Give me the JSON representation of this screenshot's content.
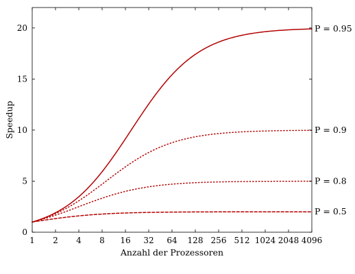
{
  "chart_data": {
    "type": "line",
    "xlabel": "Anzahl der Prozessoren",
    "ylabel": "Speedup",
    "x_scale": "log2",
    "xlim": [
      1,
      4096
    ],
    "ylim": [
      0,
      22
    ],
    "x": [
      1,
      2,
      4,
      8,
      16,
      32,
      64,
      128,
      256,
      512,
      1024,
      2048,
      4096
    ],
    "x_tick_labels": [
      "1",
      "2",
      "4",
      "8",
      "16",
      "32",
      "64",
      "128",
      "256",
      "512",
      "1024",
      "2048",
      "4096"
    ],
    "y_ticks": [
      0,
      5,
      10,
      15,
      20
    ],
    "y_tick_labels": [
      "0",
      "5",
      "10",
      "15",
      "20"
    ],
    "grid": false,
    "line_color": "#b30000",
    "series": [
      {
        "name": "P = 0.95",
        "p": 0.95,
        "dash": "solid",
        "values": [
          1.0,
          1.9,
          3.48,
          5.93,
          9.14,
          12.55,
          15.42,
          17.41,
          18.62,
          19.28,
          19.63,
          19.82,
          19.91
        ]
      },
      {
        "name": "P = 0.9",
        "p": 0.9,
        "dash": "dotted",
        "values": [
          1.0,
          1.82,
          3.08,
          4.71,
          6.4,
          7.8,
          8.77,
          9.34,
          9.66,
          9.83,
          9.91,
          9.96,
          9.98
        ]
      },
      {
        "name": "P = 0.8",
        "p": 0.8,
        "dash": "dotted",
        "values": [
          1.0,
          1.67,
          2.5,
          3.33,
          4.0,
          4.44,
          4.71,
          4.85,
          4.92,
          4.96,
          4.98,
          4.99,
          5.0
        ]
      },
      {
        "name": "P = 0.5",
        "p": 0.5,
        "dash": "dashed",
        "values": [
          1.0,
          1.33,
          1.6,
          1.78,
          1.88,
          1.94,
          1.97,
          1.98,
          1.99,
          2.0,
          2.0,
          2.0,
          2.0
        ]
      }
    ]
  }
}
